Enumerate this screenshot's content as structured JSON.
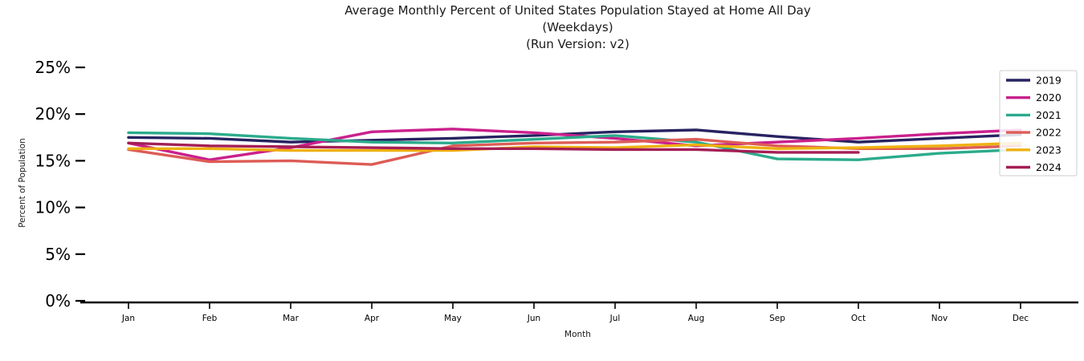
{
  "title": {
    "line1": "Average Monthly Percent of United States Population Stayed at Home All Day",
    "line2": "(Weekdays)",
    "line3": "(Run Version: v2)"
  },
  "chart_data": {
    "type": "line",
    "title": "Average Monthly Percent of United States Population Stayed at Home All Day (Weekdays) (Run Version: v2)",
    "xlabel": "Month",
    "ylabel": "Percent of Population",
    "categories": [
      "Jan",
      "Feb",
      "Mar",
      "Apr",
      "May",
      "Jun",
      "Jul",
      "Aug",
      "Sep",
      "Oct",
      "Nov",
      "Dec"
    ],
    "ytick_labels": [
      "0%",
      "5%",
      "10%",
      "15%",
      "20%",
      "25%"
    ],
    "ytick_values": [
      0,
      5,
      10,
      15,
      20,
      25
    ],
    "ylim": [
      0,
      26.7
    ],
    "grid": false,
    "legend_position": "upper right",
    "series": [
      {
        "name": "2019",
        "color": "#272361",
        "values": [
          17.5,
          17.4,
          17.0,
          17.2,
          17.4,
          17.7,
          18.1,
          18.3,
          17.6,
          17.0,
          17.4,
          17.8
        ]
      },
      {
        "name": "2020",
        "color": "#ca208c",
        "values": [
          16.9,
          15.1,
          16.4,
          18.1,
          18.4,
          18.0,
          17.4,
          16.6,
          17.0,
          17.4,
          17.9,
          18.3
        ]
      },
      {
        "name": "2021",
        "color": "#2bab8c",
        "values": [
          18.0,
          17.9,
          17.4,
          17.0,
          16.9,
          17.3,
          17.7,
          17.0,
          15.2,
          15.1,
          15.8,
          16.2
        ]
      },
      {
        "name": "2022",
        "color": "#dd5c56",
        "values": [
          16.2,
          14.9,
          15.0,
          14.6,
          16.6,
          16.9,
          17.0,
          17.3,
          16.6,
          16.3,
          16.3,
          16.6
        ]
      },
      {
        "name": "2023",
        "color": "#eeb111",
        "values": [
          16.3,
          16.3,
          16.1,
          16.1,
          16.1,
          16.5,
          16.4,
          16.7,
          16.3,
          16.4,
          16.6,
          16.9
        ]
      },
      {
        "name": "2024",
        "color": "#a41e54",
        "values": [
          16.9,
          16.6,
          16.5,
          16.4,
          16.3,
          16.3,
          16.2,
          16.2,
          15.9,
          15.9,
          null,
          null
        ]
      }
    ]
  }
}
